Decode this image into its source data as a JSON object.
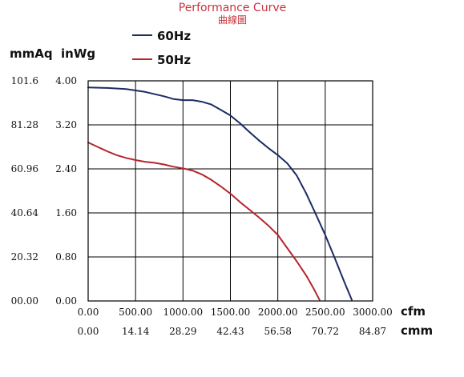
{
  "chart_data": {
    "type": "line",
    "title": "Performance Curve",
    "subtitle": "曲線圖",
    "x_unit_primary": "cfm",
    "x_unit_secondary": "cmm",
    "y_unit_primary": "mmAq",
    "y_unit_secondary": "inWg",
    "xlim": [
      0,
      3000
    ],
    "ylim": [
      0,
      4.0
    ],
    "grid": true,
    "legend_position": "top-left",
    "x_ticks": [
      0,
      500,
      1000,
      1500,
      2000,
      2500,
      3000
    ],
    "x_tick_labels": [
      "0.00",
      "500.00",
      "1000.00",
      "1500.00",
      "2000.00",
      "2500.00",
      "3000.00"
    ],
    "x_tick_labels_secondary": [
      "0.00",
      "14.14",
      "28.29",
      "42.43",
      "56.58",
      "70.72",
      "84.87"
    ],
    "y_ticks": [
      0,
      0.8,
      1.6,
      2.4,
      3.2,
      4.0
    ],
    "y_tick_labels": [
      "0.00",
      "0.80",
      "1.60",
      "2.40",
      "3.20",
      "4.00"
    ],
    "y_tick_labels_secondary": [
      "00.00",
      "20.32",
      "40.64",
      "60.96",
      "81.28",
      "101.6"
    ],
    "series": [
      {
        "name": "60Hz",
        "color": "#1c2b63",
        "x": [
          0,
          200,
          400,
          600,
          800,
          900,
          1000,
          1100,
          1200,
          1300,
          1400,
          1500,
          1600,
          1700,
          1800,
          1900,
          2000,
          2100,
          2200,
          2300,
          2400,
          2500,
          2600,
          2700,
          2780
        ],
        "y": [
          3.88,
          3.87,
          3.85,
          3.8,
          3.72,
          3.67,
          3.65,
          3.65,
          3.62,
          3.57,
          3.47,
          3.37,
          3.23,
          3.07,
          2.92,
          2.78,
          2.65,
          2.5,
          2.28,
          1.95,
          1.58,
          1.2,
          0.78,
          0.35,
          0.02
        ]
      },
      {
        "name": "50Hz",
        "color": "#b5262c",
        "x": [
          0,
          100,
          200,
          300,
          400,
          500,
          600,
          700,
          800,
          900,
          1000,
          1100,
          1200,
          1300,
          1400,
          1500,
          1600,
          1700,
          1800,
          1900,
          2000,
          2100,
          2200,
          2300,
          2380,
          2440
        ],
        "y": [
          2.88,
          2.8,
          2.72,
          2.65,
          2.6,
          2.56,
          2.53,
          2.51,
          2.48,
          2.44,
          2.41,
          2.37,
          2.3,
          2.2,
          2.08,
          1.95,
          1.8,
          1.66,
          1.52,
          1.37,
          1.2,
          0.96,
          0.72,
          0.46,
          0.22,
          0.02
        ]
      }
    ]
  }
}
